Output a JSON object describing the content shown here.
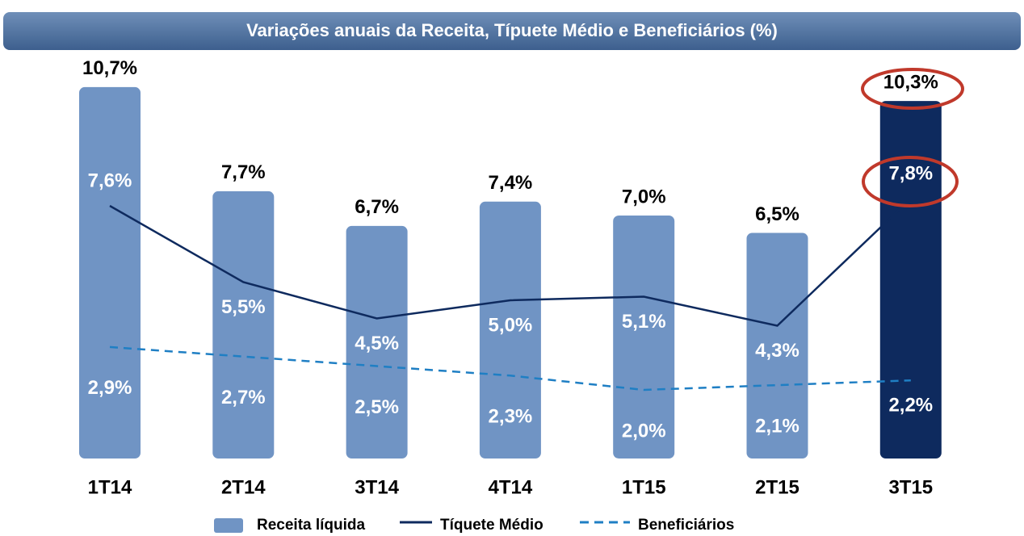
{
  "chart_data": {
    "type": "bar_line",
    "title": "Variações anuais da Receita, Típuete Médio e Beneficiários (%)",
    "categories": [
      "1T14",
      "2T14",
      "3T14",
      "4T14",
      "1T15",
      "2T15",
      "3T15"
    ],
    "series": [
      {
        "name": "Receita líquida",
        "type": "bar",
        "color": "#7094c4",
        "colors": [
          "#7094c4",
          "#7094c4",
          "#7094c4",
          "#7094c4",
          "#7094c4",
          "#7094c4",
          "#0e2a5e"
        ],
        "values": [
          10.7,
          7.7,
          6.7,
          7.4,
          7.0,
          6.5,
          10.3
        ],
        "value_labels": [
          "10,7%",
          "7,7%",
          "6,7%",
          "7,4%",
          "7,0%",
          "6,5%",
          "10,3%"
        ]
      },
      {
        "name": "Tíquete Médio",
        "type": "line",
        "color": "#0e2a5e",
        "values": [
          7.6,
          5.5,
          4.5,
          5.0,
          5.1,
          4.3,
          7.8
        ],
        "value_labels": [
          "7,6%",
          "5,5%",
          "4,5%",
          "5,0%",
          "5,1%",
          "4,3%",
          "7,8%"
        ]
      },
      {
        "name": "Beneficiários",
        "type": "dashed-line",
        "color": "#1f7fc4",
        "values": [
          2.9,
          2.7,
          2.5,
          2.3,
          2.0,
          2.1,
          2.2
        ],
        "value_labels": [
          "2,9%",
          "2,7%",
          "2,5%",
          "2,3%",
          "2,0%",
          "2,1%",
          "2,2%"
        ]
      }
    ]
  }
}
